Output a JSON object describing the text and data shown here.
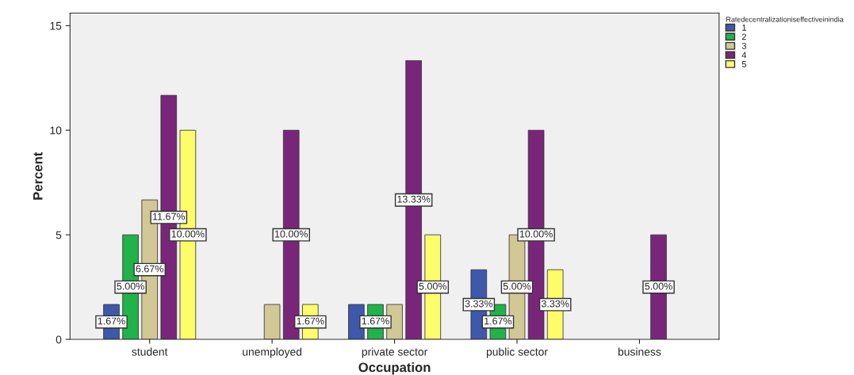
{
  "chart_data": {
    "type": "bar",
    "xlabel": "Occupation",
    "ylabel": "Percent",
    "legend_title": "Ratedecentralizationiseffectiveinindia",
    "legend": "top right",
    "categories": [
      "student",
      "unemployed",
      "private sector",
      "public sector",
      "business"
    ],
    "ylim": [
      0,
      15.6
    ],
    "yticks": [
      0,
      5,
      10,
      15
    ],
    "grid": false,
    "series": [
      {
        "name": "1",
        "color": "#3e58ac",
        "values": [
          1.67,
          null,
          1.67,
          3.33,
          null
        ],
        "value_labels": [
          "1.67%",
          null,
          null,
          "3.33%",
          null
        ]
      },
      {
        "name": "2",
        "color": "#21b24a",
        "values": [
          5.0,
          null,
          1.67,
          1.67,
          null
        ],
        "value_labels": [
          "5.00%",
          null,
          "1.67%",
          "1.67%",
          null
        ]
      },
      {
        "name": "3",
        "color": "#d1c895",
        "values": [
          6.67,
          1.67,
          1.67,
          5.0,
          null
        ],
        "value_labels": [
          "6.67%",
          null,
          null,
          "5.00%",
          null
        ]
      },
      {
        "name": "4",
        "color": "#79267a",
        "values": [
          11.67,
          10.0,
          13.33,
          10.0,
          5.0
        ],
        "value_labels": [
          "11.67%",
          "10.00%",
          "13.33%",
          "10.00%",
          "5.00%"
        ]
      },
      {
        "name": "5",
        "color": "#fdfd6a",
        "values": [
          10.0,
          1.67,
          5.0,
          3.33,
          null
        ],
        "value_labels": [
          "10.00%",
          "1.67%",
          "5.00%",
          "3.33%",
          null
        ]
      }
    ]
  }
}
